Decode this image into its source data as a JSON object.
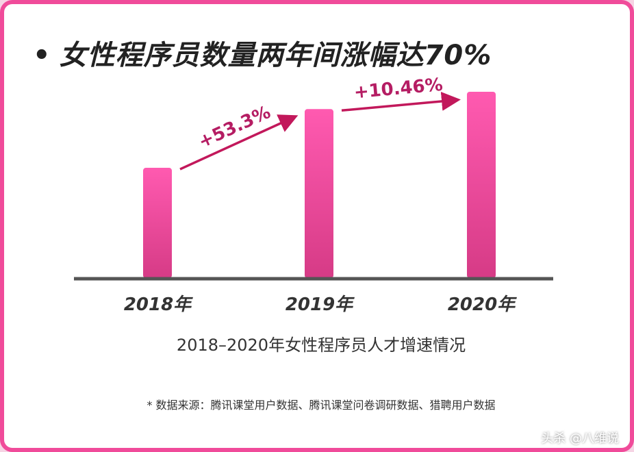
{
  "headline": "女性程序员数量两年间涨幅达70%",
  "caption": "2018–2020年女性程序员人才增速情况",
  "source_note": "* 数据来源：腾讯课堂用户数据、腾讯课堂问卷调研数据、猎聘用户数据",
  "watermark": "头杀 @八维说",
  "colors": {
    "border": "#f04b9a",
    "bar_top": "#ff5ab0",
    "bar_bottom": "#d63b86",
    "arrow": "#c2185b",
    "axis": "#555555"
  },
  "chart_data": {
    "type": "bar",
    "categories": [
      "2018年",
      "2019年",
      "2020年"
    ],
    "values": [
      1.0,
      1.533,
      1.69
    ],
    "ylim": [
      0,
      1.8
    ],
    "annotations": [
      {
        "from": 0,
        "to": 1,
        "label": "+53.3%"
      },
      {
        "from": 1,
        "to": 2,
        "label": "+10.46%"
      }
    ],
    "grid": false,
    "legend": "none"
  }
}
